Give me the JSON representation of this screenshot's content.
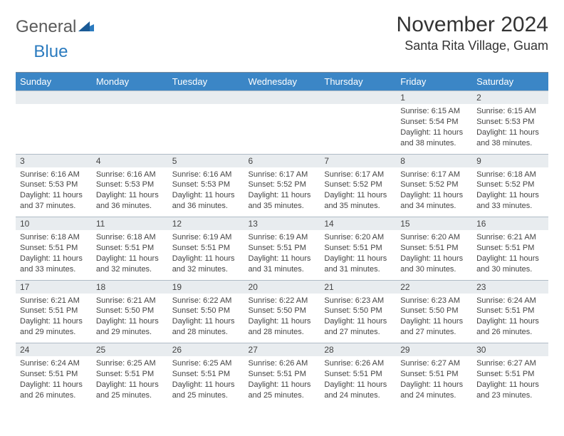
{
  "logo": {
    "text1": "General",
    "text2": "Blue"
  },
  "title": "November 2024",
  "location": "Santa Rita Village, Guam",
  "colors": {
    "header_bg": "#3b86c6",
    "header_text": "#ffffff",
    "daynum_bg": "#e8ecef",
    "border": "#b0bcc6",
    "body_text": "#444444",
    "logo_gray": "#5a5a5a",
    "logo_blue": "#2b7bbf"
  },
  "daynames": [
    "Sunday",
    "Monday",
    "Tuesday",
    "Wednesday",
    "Thursday",
    "Friday",
    "Saturday"
  ],
  "weeks": [
    [
      {
        "n": "",
        "sr": "",
        "ss": "",
        "dl": ""
      },
      {
        "n": "",
        "sr": "",
        "ss": "",
        "dl": ""
      },
      {
        "n": "",
        "sr": "",
        "ss": "",
        "dl": ""
      },
      {
        "n": "",
        "sr": "",
        "ss": "",
        "dl": ""
      },
      {
        "n": "",
        "sr": "",
        "ss": "",
        "dl": ""
      },
      {
        "n": "1",
        "sr": "Sunrise: 6:15 AM",
        "ss": "Sunset: 5:54 PM",
        "dl": "Daylight: 11 hours and 38 minutes."
      },
      {
        "n": "2",
        "sr": "Sunrise: 6:15 AM",
        "ss": "Sunset: 5:53 PM",
        "dl": "Daylight: 11 hours and 38 minutes."
      }
    ],
    [
      {
        "n": "3",
        "sr": "Sunrise: 6:16 AM",
        "ss": "Sunset: 5:53 PM",
        "dl": "Daylight: 11 hours and 37 minutes."
      },
      {
        "n": "4",
        "sr": "Sunrise: 6:16 AM",
        "ss": "Sunset: 5:53 PM",
        "dl": "Daylight: 11 hours and 36 minutes."
      },
      {
        "n": "5",
        "sr": "Sunrise: 6:16 AM",
        "ss": "Sunset: 5:53 PM",
        "dl": "Daylight: 11 hours and 36 minutes."
      },
      {
        "n": "6",
        "sr": "Sunrise: 6:17 AM",
        "ss": "Sunset: 5:52 PM",
        "dl": "Daylight: 11 hours and 35 minutes."
      },
      {
        "n": "7",
        "sr": "Sunrise: 6:17 AM",
        "ss": "Sunset: 5:52 PM",
        "dl": "Daylight: 11 hours and 35 minutes."
      },
      {
        "n": "8",
        "sr": "Sunrise: 6:17 AM",
        "ss": "Sunset: 5:52 PM",
        "dl": "Daylight: 11 hours and 34 minutes."
      },
      {
        "n": "9",
        "sr": "Sunrise: 6:18 AM",
        "ss": "Sunset: 5:52 PM",
        "dl": "Daylight: 11 hours and 33 minutes."
      }
    ],
    [
      {
        "n": "10",
        "sr": "Sunrise: 6:18 AM",
        "ss": "Sunset: 5:51 PM",
        "dl": "Daylight: 11 hours and 33 minutes."
      },
      {
        "n": "11",
        "sr": "Sunrise: 6:18 AM",
        "ss": "Sunset: 5:51 PM",
        "dl": "Daylight: 11 hours and 32 minutes."
      },
      {
        "n": "12",
        "sr": "Sunrise: 6:19 AM",
        "ss": "Sunset: 5:51 PM",
        "dl": "Daylight: 11 hours and 32 minutes."
      },
      {
        "n": "13",
        "sr": "Sunrise: 6:19 AM",
        "ss": "Sunset: 5:51 PM",
        "dl": "Daylight: 11 hours and 31 minutes."
      },
      {
        "n": "14",
        "sr": "Sunrise: 6:20 AM",
        "ss": "Sunset: 5:51 PM",
        "dl": "Daylight: 11 hours and 31 minutes."
      },
      {
        "n": "15",
        "sr": "Sunrise: 6:20 AM",
        "ss": "Sunset: 5:51 PM",
        "dl": "Daylight: 11 hours and 30 minutes."
      },
      {
        "n": "16",
        "sr": "Sunrise: 6:21 AM",
        "ss": "Sunset: 5:51 PM",
        "dl": "Daylight: 11 hours and 30 minutes."
      }
    ],
    [
      {
        "n": "17",
        "sr": "Sunrise: 6:21 AM",
        "ss": "Sunset: 5:51 PM",
        "dl": "Daylight: 11 hours and 29 minutes."
      },
      {
        "n": "18",
        "sr": "Sunrise: 6:21 AM",
        "ss": "Sunset: 5:50 PM",
        "dl": "Daylight: 11 hours and 29 minutes."
      },
      {
        "n": "19",
        "sr": "Sunrise: 6:22 AM",
        "ss": "Sunset: 5:50 PM",
        "dl": "Daylight: 11 hours and 28 minutes."
      },
      {
        "n": "20",
        "sr": "Sunrise: 6:22 AM",
        "ss": "Sunset: 5:50 PM",
        "dl": "Daylight: 11 hours and 28 minutes."
      },
      {
        "n": "21",
        "sr": "Sunrise: 6:23 AM",
        "ss": "Sunset: 5:50 PM",
        "dl": "Daylight: 11 hours and 27 minutes."
      },
      {
        "n": "22",
        "sr": "Sunrise: 6:23 AM",
        "ss": "Sunset: 5:50 PM",
        "dl": "Daylight: 11 hours and 27 minutes."
      },
      {
        "n": "23",
        "sr": "Sunrise: 6:24 AM",
        "ss": "Sunset: 5:51 PM",
        "dl": "Daylight: 11 hours and 26 minutes."
      }
    ],
    [
      {
        "n": "24",
        "sr": "Sunrise: 6:24 AM",
        "ss": "Sunset: 5:51 PM",
        "dl": "Daylight: 11 hours and 26 minutes."
      },
      {
        "n": "25",
        "sr": "Sunrise: 6:25 AM",
        "ss": "Sunset: 5:51 PM",
        "dl": "Daylight: 11 hours and 25 minutes."
      },
      {
        "n": "26",
        "sr": "Sunrise: 6:25 AM",
        "ss": "Sunset: 5:51 PM",
        "dl": "Daylight: 11 hours and 25 minutes."
      },
      {
        "n": "27",
        "sr": "Sunrise: 6:26 AM",
        "ss": "Sunset: 5:51 PM",
        "dl": "Daylight: 11 hours and 25 minutes."
      },
      {
        "n": "28",
        "sr": "Sunrise: 6:26 AM",
        "ss": "Sunset: 5:51 PM",
        "dl": "Daylight: 11 hours and 24 minutes."
      },
      {
        "n": "29",
        "sr": "Sunrise: 6:27 AM",
        "ss": "Sunset: 5:51 PM",
        "dl": "Daylight: 11 hours and 24 minutes."
      },
      {
        "n": "30",
        "sr": "Sunrise: 6:27 AM",
        "ss": "Sunset: 5:51 PM",
        "dl": "Daylight: 11 hours and 23 minutes."
      }
    ]
  ]
}
